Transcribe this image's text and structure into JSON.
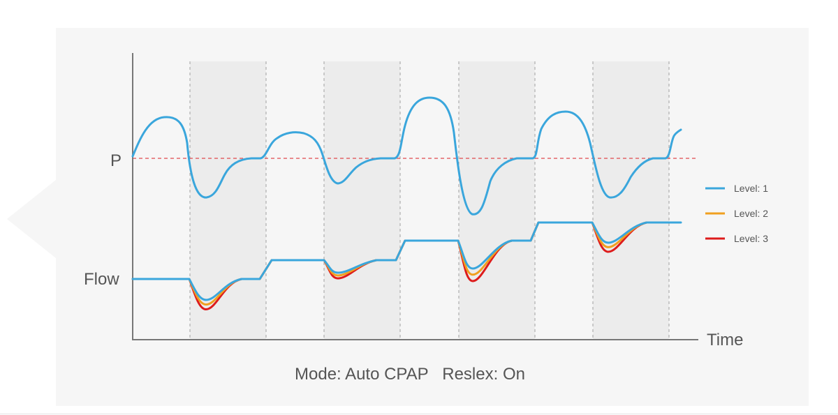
{
  "chart_data": {
    "type": "line",
    "title": "",
    "caption": "Mode: Auto CPAP   Reslex: On",
    "xlabel": "Time",
    "y_labels": {
      "pressure": "P",
      "flow": "Flow"
    },
    "grid": false,
    "shaded_intervals": 4,
    "reference_line": {
      "label": "P",
      "style": "dashed",
      "color": "#e0484d"
    },
    "legend": {
      "placement": "right",
      "entries": [
        {
          "label": "Level: 1",
          "color": "#3aa6dc"
        },
        {
          "label": "Level: 2",
          "color": "#f0a020"
        },
        {
          "label": "Level: 3",
          "color": "#dd1c1c"
        }
      ]
    },
    "series": [
      {
        "name": "Level: 1",
        "color": "#3aa6dc"
      },
      {
        "name": "Level: 2",
        "color": "#f0a020"
      },
      {
        "name": "Level: 3",
        "color": "#dd1c1c"
      }
    ]
  }
}
